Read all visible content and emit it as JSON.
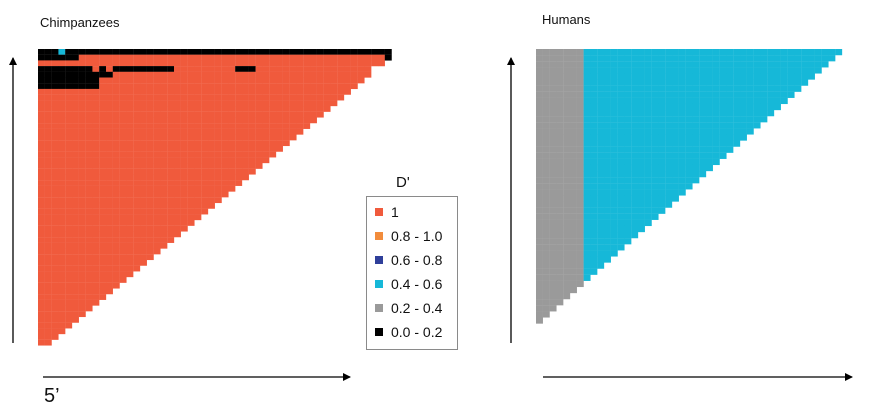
{
  "chart_data": [
    {
      "type": "heatmap",
      "title": "Chimpanzees",
      "shape": "upper-triangle",
      "value_name": "D'",
      "rows": [
        "AAACAAAAAAAAAAAAAAAAAAAAAAAAAAAAAAAAAAAAAAAAAAAAAAAA",
        "AAAAAAFFFFFFFFFFFFFFFFFFFFFFFFFFFFFFFFFFFFFFFFFFFFFA",
        "FFFFFFFFFFFFFFFFFFFFFFFFFFFFFFFFFFFFFFFFFFFFFFFFFFF",
        "AAAAAAAAFAFAAAAAAAAAFFFFFFFFFAAAFFFFFFFFFFFFFFFFF",
        "AAAAAAAAAAAFFFFFFFFFFFFFFFFFFFFFFFFFFFFFFFFFFFFFF",
        "AAAAAAAAAFFFFFFFFFFFFFFFFFFFFFFFFFFFFFFFFFFFFFFF",
        "AAAAAAAAAFFFFFFFFFFFFFFFFFFFFFFFFFFFFFFFFFFFFFF",
        "FFFFFFFFFFFFFFFFFFFFFFFFFFFFFFFFFFFFFFFFFFFFFF",
        "FFFFFFFFFFFFFFFFFFFFFFFFFFFFFFFFFFFFFFFFFFFFF",
        "FFFFFFFFFFFFFFFFFFFFFFFFFFFFFFFFFFFFFFFFFFFF",
        "FFFFFFFFFFFFFFFFFFFFFFFFFFFFFFFFFFFFFFFFFFF",
        "FFFFFFFFFFFFFFFFFFFFFFFFFFFFFFFFFFFFFFFFFF",
        "FFFFFFFFFFFFFFFFFFFFFFFFFFFFFFFFFFFFFFFFF",
        "FFFFFFFFFFFFFFFFFFFFFFFFFFFFFFFFFFFFFFFF",
        "FFFFFFFFFFFFFFFFFFFFFFFFFFFFFFFFFFFFFFF",
        "FFFFFFFFFFFFFFFFFFFFFFFFFFFFFFFFFFFFFF",
        "FFFFFFFFFFFFFFFFFFFFFFFFFFFFFFFFFFFFF",
        "FFFFFFFFFFFFFFFFFFFFFFFFFFFFFFFFFFFF",
        "FFFFFFFFFFFFFFFFFFFFFFFFFFFFFFFFFFF",
        "FFFFFFFFFFFFFFFFFFFFFFFFFFFFFFFFFF",
        "FFFFFFFFFFFFFFFFFFFFFFFFFFFFFFFFF",
        "FFFFFFFFFFFFFFFFFFFFFFFFFFFFFFFF",
        "FFFFFFFFFFFFFFFFFFFFFFFFFFFFFFF",
        "FFFFFFFFFFFFFFFFFFFFFFFFFFFFFF",
        "FFFFFFFFFFFFFFFFFFFFFFFFFFFFF",
        "FFFFFFFFFFFFFFFFFFFFFFFFFFFF",
        "FFFFFFFFFFFFFFFFFFFFFFFFFFF",
        "FFFFFFFFFFFFFFFFFFFFFFFFFF",
        "FFFFFFFFFFFFFFFFFFFFFFFFF",
        "FFFFFFFFFFFFFFFFFFFFFFFF",
        "FFFFFFFFFFFFFFFFFFFFFFF",
        "FFFFFFFFFFFFFFFFFFFFFF",
        "FFFFFFFFFFFFFFFFFFFFF",
        "FFFFFFFFFFFFFFFFFFFF",
        "FFFFFFFFFFFFFFFFFFF",
        "FFFFFFFFFFFFFFFFFF",
        "FFFFFFFFFFFFFFFFF",
        "FFFFFFFFFFFFFFFF",
        "FFFFFFFFFFFFFFF",
        "FFFFFFFFFFFFFF",
        "FFFFFFFFFFFFF",
        "FFFFFFFFFFFF",
        "FFFFFFFFFFF",
        "FFFFFFFFFF",
        "FFFFFFFFF",
        "FFFFFFFF",
        "FFFFFFF",
        "FFFFFF",
        "FFFFF",
        "FFFF",
        "FFF",
        "FF"
      ]
    },
    {
      "type": "heatmap",
      "title": "Humans",
      "shape": "upper-triangle",
      "value_name": "D'",
      "rows": [
        "BBBBBBBCCCCCCCCCCCCCCCCCCCCCCCCCCCCCCCCCCCCCC",
        "BBBBBBBCCCCCCCCCCCCCCCCCCCCCCCCCCCCCCCCCCCCC",
        "BBBBBBBCCCCCCCCCCCCCCCCCCCCCCCCCCCCCCCCCCCC",
        "BBBBBBBCCCCCCCCCCCCCCCCCCCCCCCCCCCCCCCCCCC",
        "BBBBBBBCCCCCCCCCCCCCCCCCCCCCCCCCCCCCCCCCC",
        "BBBBBBBCCCCCCCCCCCCCCCCCCCCCCCCCCCCCCCCC",
        "BBBBBBBCCCCCCCCCCCCCCCCCCCCCCCCCCCCCCCC",
        "BBBBBBBCCCCCCCCCCCCCCCCCCCCCCCCCCCCCCC",
        "BBBBBBBCCCCCCCCCCCCCCCCCCCCCCCCCCCCCC",
        "BBBBBBBCCCCCCCCCCCCCCCCCCCCCCCCCCCCC",
        "BBBBBBBCCCCCCCCCCCCCCCCCCCCCCCCCCCC",
        "BBBBBBBCCCCCCCCCCCCCCCCCCCCCCCCCCC",
        "BBBBBBBCCCCCCCCCCCCCCCCCCCCCCCCCC",
        "BBBBBBBCCCCCCCCCCCCCCCCCCCCCCCCC",
        "BBBBBBBCCCCCCCCCCCCCCCCCCCCCCCC",
        "BBBBBBBCCCCCCCCCCCCCCCCCCCCCCC",
        "BBBBBBBCCCCCCCCCCCCCCCCCCCCCC",
        "BBBBBBBCCCCCCCCCCCCCCCCCCCCC",
        "BBBBBBBCCCCCCCCCCCCCCCCCCCC",
        "BBBBBBBCCCCCCCCCCCCCCCCCCC",
        "BBBBBBBCCCCCCCCCCCCCCCCCC",
        "BBBBBBBCCCCCCCCCCCCCCCCC",
        "BBBBBBBCCCCCCCCCCCCCCCC",
        "BBBBBBBCCCCCCCCCCCCCCC",
        "BBBBBBBCCCCCCCCCCCCCC",
        "BBBBBBBCCCCCCCCCCCCC",
        "BBBBBBBCCCCCCCCCCCC",
        "BBBBBBBCCCCCCCCCCC",
        "BBBBBBBCCCCCCCCCC",
        "BBBBBBBCCCCCCCCC",
        "BBBBBBBCCCCCCCC",
        "BBBBBBBCCCCCCC",
        "BBBBBBBCCCCCC",
        "BBBBBBBCCCCC",
        "BBBBBBBCCCC",
        "BBBBBBBCCC",
        "BBBBBBBCC",
        "BBBBBBBC",
        "BBBBBBB",
        "BBBBBB",
        "BBBBB",
        "BBBB",
        "BBB",
        "BB",
        "B"
      ]
    }
  ],
  "legend": {
    "title": "D'",
    "items": [
      {
        "label": "1",
        "code": "F",
        "color": "#F05A3C"
      },
      {
        "label": "0.8 - 1.0",
        "code": "E",
        "color": "#F28C3C"
      },
      {
        "label": "0.6 - 0.8",
        "code": "D",
        "color": "#2F3F9A"
      },
      {
        "label": "0.4 - 0.6",
        "code": "C",
        "color": "#16B8D8"
      },
      {
        "label": "0.2 - 0.4",
        "code": "B",
        "color": "#9A9A9A"
      },
      {
        "label": "0.0 - 0.2",
        "code": "A",
        "color": "#000000"
      }
    ]
  },
  "annotation": "5’"
}
